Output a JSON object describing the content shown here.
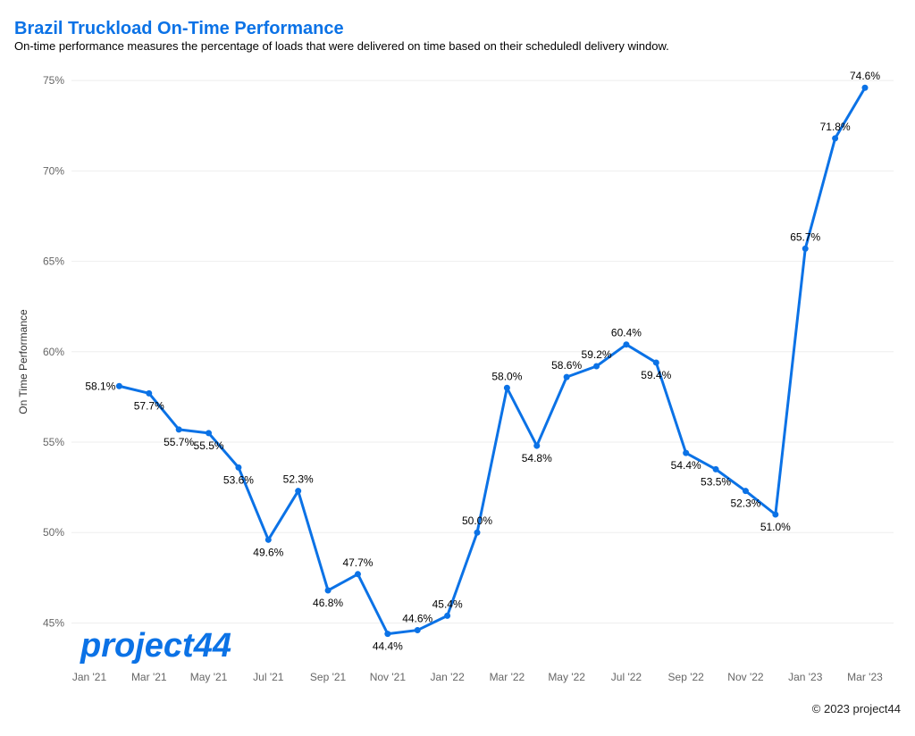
{
  "chart_data": {
    "type": "line",
    "title": "Brazil Truckload On-Time Performance",
    "subtitle": "On-time performance measures the percentage of loads that were delivered on time based on their scheduledl delivery window.",
    "y_axis_label": "On Time Performance",
    "logo": "project44",
    "footer": "© 2023 project44",
    "categories": [
      "Jan '21",
      null,
      "Mar '21",
      null,
      "May '21",
      null,
      "Jul '21",
      null,
      "Sep '21",
      null,
      "Nov '21",
      null,
      "Jan '22",
      null,
      "Mar '22",
      null,
      "May '22",
      null,
      "Jul '22",
      null,
      "Sep '22",
      null,
      "Nov '22",
      null,
      "Jan '23",
      null,
      "Mar '23"
    ],
    "series": [
      {
        "name": "On Time Performance",
        "color": "#0b72e6",
        "values": [
          null,
          58.1,
          57.7,
          55.7,
          55.5,
          53.6,
          49.6,
          52.3,
          46.8,
          47.7,
          44.4,
          44.6,
          45.4,
          50.0,
          58.0,
          54.8,
          58.6,
          59.2,
          60.4,
          59.4,
          54.4,
          53.5,
          52.3,
          51.0,
          65.7,
          71.8,
          74.6
        ],
        "value_labels": [
          null,
          "58.1%",
          "57.7%",
          "55.7%",
          "55.5%",
          "53.6%",
          "49.6%",
          "52.3%",
          "46.8%",
          "47.7%",
          "44.4%",
          "44.6%",
          "45.4%",
          "50.0%",
          "58.0%",
          "54.8%",
          "58.6%",
          "59.2%",
          "60.4%",
          "59.4%",
          "54.4%",
          "53.5%",
          "52.3%",
          "51.0%",
          "65.7%",
          "71.8%",
          "74.6%"
        ]
      }
    ],
    "ylim": [
      42.8,
      75.5
    ],
    "yticks": [
      {
        "value": 45,
        "label": "45%"
      },
      {
        "value": 50,
        "label": "50%"
      },
      {
        "value": 55,
        "label": "55%"
      },
      {
        "value": 60,
        "label": "60%"
      },
      {
        "value": 65,
        "label": "65%"
      },
      {
        "value": 70,
        "label": "70%"
      },
      {
        "value": 75,
        "label": "75%"
      }
    ],
    "grid": true
  }
}
